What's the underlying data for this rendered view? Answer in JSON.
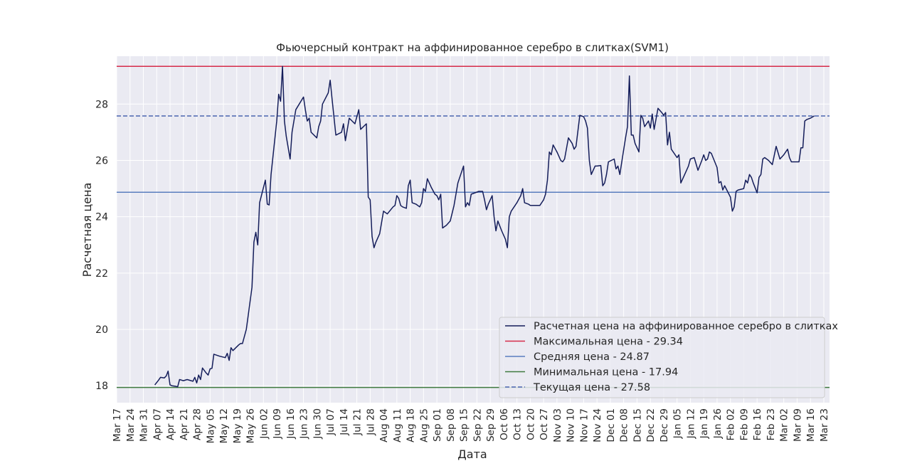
{
  "chart_data": {
    "type": "line",
    "title": "Фьючерсный контракт на аффинированное серебро в слитках(SVM1)",
    "xlabel": "Дата",
    "ylabel": "Расчетная цена",
    "ylim": [
      17.4,
      29.7
    ],
    "yticks": [
      18,
      20,
      22,
      24,
      26,
      28
    ],
    "xlim": [
      "2021-03-17",
      "2022-03-26"
    ],
    "xticks": [
      "Mar 17",
      "Mar 24",
      "Mar 31",
      "Apr 07",
      "Apr 14",
      "Apr 21",
      "Apr 28",
      "May 05",
      "May 12",
      "May 19",
      "May 26",
      "Jun 02",
      "Jun 09",
      "Jun 16",
      "Jun 23",
      "Jun 30",
      "Jul 07",
      "Jul 14",
      "Jul 21",
      "Jul 28",
      "Aug 04",
      "Aug 11",
      "Aug 18",
      "Aug 25",
      "Sep 01",
      "Sep 08",
      "Sep 15",
      "Sep 22",
      "Sep 29",
      "Oct 06",
      "Oct 13",
      "Oct 20",
      "Oct 27",
      "Nov 03",
      "Nov 10",
      "Nov 17",
      "Nov 24",
      "Dec 01",
      "Dec 08",
      "Dec 15",
      "Dec 22",
      "Dec 29",
      "Jan 05",
      "Jan 12",
      "Jan 19",
      "Jan 26",
      "Feb 02",
      "Feb 09",
      "Feb 16",
      "Feb 23",
      "Mar 02",
      "Mar 09",
      "Mar 16",
      "Mar 23"
    ],
    "grid": true,
    "legend_position": "lower-right",
    "series": [
      {
        "name": "Расчетная цена на аффинированное серебро в слитках",
        "color": "#141d5a",
        "style": "solid",
        "points": [
          [
            "2021-04-06",
            18.03
          ],
          [
            "2021-04-08",
            18.2
          ],
          [
            "2021-04-09",
            18.3
          ],
          [
            "2021-04-11",
            18.28
          ],
          [
            "2021-04-12",
            18.35
          ],
          [
            "2021-04-13",
            18.52
          ],
          [
            "2021-04-14",
            18.03
          ],
          [
            "2021-04-15",
            18.0
          ],
          [
            "2021-04-17",
            17.98
          ],
          [
            "2021-04-18",
            17.96
          ],
          [
            "2021-04-19",
            18.22
          ],
          [
            "2021-04-21",
            18.18
          ],
          [
            "2021-04-23",
            18.22
          ],
          [
            "2021-04-26",
            18.16
          ],
          [
            "2021-04-27",
            18.3
          ],
          [
            "2021-04-28",
            18.1
          ],
          [
            "2021-04-29",
            18.38
          ],
          [
            "2021-04-30",
            18.22
          ],
          [
            "2021-05-01",
            18.63
          ],
          [
            "2021-05-03",
            18.45
          ],
          [
            "2021-05-04",
            18.38
          ],
          [
            "2021-05-05",
            18.6
          ],
          [
            "2021-05-06",
            18.62
          ],
          [
            "2021-05-07",
            19.12
          ],
          [
            "2021-05-10",
            19.05
          ],
          [
            "2021-05-13",
            19.0
          ],
          [
            "2021-05-14",
            19.15
          ],
          [
            "2021-05-15",
            18.9
          ],
          [
            "2021-05-16",
            19.35
          ],
          [
            "2021-05-17",
            19.25
          ],
          [
            "2021-05-20",
            19.45
          ],
          [
            "2021-05-21",
            19.5
          ],
          [
            "2021-05-22",
            19.5
          ],
          [
            "2021-05-24",
            20.0
          ],
          [
            "2021-05-25",
            20.5
          ],
          [
            "2021-05-27",
            21.5
          ],
          [
            "2021-05-28",
            23.1
          ],
          [
            "2021-05-29",
            23.45
          ],
          [
            "2021-05-30",
            23.0
          ],
          [
            "2021-05-31",
            24.5
          ],
          [
            "2021-06-03",
            25.3
          ],
          [
            "2021-06-04",
            24.45
          ],
          [
            "2021-06-05",
            24.42
          ],
          [
            "2021-06-06",
            25.5
          ],
          [
            "2021-06-09",
            27.4
          ],
          [
            "2021-06-10",
            28.35
          ],
          [
            "2021-06-11",
            28.1
          ],
          [
            "2021-06-12",
            29.34
          ],
          [
            "2021-06-13",
            27.4
          ],
          [
            "2021-06-14",
            26.85
          ],
          [
            "2021-06-16",
            26.05
          ],
          [
            "2021-06-17",
            27.0
          ],
          [
            "2021-06-19",
            27.8
          ],
          [
            "2021-06-23",
            28.25
          ],
          [
            "2021-06-24",
            27.8
          ],
          [
            "2021-06-25",
            27.4
          ],
          [
            "2021-06-26",
            27.5
          ],
          [
            "2021-06-27",
            27.0
          ],
          [
            "2021-06-30",
            26.8
          ],
          [
            "2021-07-01",
            27.2
          ],
          [
            "2021-07-02",
            27.4
          ],
          [
            "2021-07-03",
            28.0
          ],
          [
            "2021-07-06",
            28.4
          ],
          [
            "2021-07-07",
            28.85
          ],
          [
            "2021-07-08",
            28.2
          ],
          [
            "2021-07-10",
            26.9
          ],
          [
            "2021-07-13",
            27.0
          ],
          [
            "2021-07-14",
            27.3
          ],
          [
            "2021-07-15",
            26.7
          ],
          [
            "2021-07-17",
            27.5
          ],
          [
            "2021-07-20",
            27.3
          ],
          [
            "2021-07-22",
            27.8
          ],
          [
            "2021-07-23",
            27.1
          ],
          [
            "2021-07-26",
            27.3
          ],
          [
            "2021-07-27",
            24.7
          ],
          [
            "2021-07-28",
            24.6
          ],
          [
            "2021-07-29",
            23.3
          ],
          [
            "2021-07-30",
            22.9
          ],
          [
            "2021-07-31",
            23.1
          ],
          [
            "2021-08-02",
            23.4
          ],
          [
            "2021-08-04",
            24.2
          ],
          [
            "2021-08-06",
            24.1
          ],
          [
            "2021-08-09",
            24.35
          ],
          [
            "2021-08-10",
            24.4
          ],
          [
            "2021-08-11",
            24.75
          ],
          [
            "2021-08-12",
            24.65
          ],
          [
            "2021-08-13",
            24.4
          ],
          [
            "2021-08-14",
            24.35
          ],
          [
            "2021-08-16",
            24.3
          ],
          [
            "2021-08-17",
            25.1
          ],
          [
            "2021-08-18",
            25.3
          ],
          [
            "2021-08-19",
            24.5
          ],
          [
            "2021-08-21",
            24.45
          ],
          [
            "2021-08-23",
            24.35
          ],
          [
            "2021-08-24",
            24.5
          ],
          [
            "2021-08-25",
            25.0
          ],
          [
            "2021-08-26",
            24.9
          ],
          [
            "2021-08-27",
            25.35
          ],
          [
            "2021-08-29",
            25.05
          ],
          [
            "2021-08-31",
            24.8
          ],
          [
            "2021-09-01",
            24.75
          ],
          [
            "2021-09-02",
            24.6
          ],
          [
            "2021-09-03",
            24.8
          ],
          [
            "2021-09-04",
            23.6
          ],
          [
            "2021-09-06",
            23.7
          ],
          [
            "2021-09-08",
            23.85
          ],
          [
            "2021-09-10",
            24.4
          ],
          [
            "2021-09-12",
            25.2
          ],
          [
            "2021-09-15",
            25.8
          ],
          [
            "2021-09-16",
            24.35
          ],
          [
            "2021-09-17",
            24.5
          ],
          [
            "2021-09-18",
            24.4
          ],
          [
            "2021-09-19",
            24.8
          ],
          [
            "2021-09-21",
            24.85
          ],
          [
            "2021-09-23",
            24.9
          ],
          [
            "2021-09-25",
            24.9
          ],
          [
            "2021-09-26",
            24.6
          ],
          [
            "2021-09-27",
            24.25
          ],
          [
            "2021-09-28",
            24.45
          ],
          [
            "2021-09-30",
            24.75
          ],
          [
            "2021-10-01",
            24.0
          ],
          [
            "2021-10-02",
            23.5
          ],
          [
            "2021-10-03",
            23.85
          ],
          [
            "2021-10-05",
            23.5
          ],
          [
            "2021-10-07",
            23.2
          ],
          [
            "2021-10-08",
            22.9
          ],
          [
            "2021-10-09",
            24.0
          ],
          [
            "2021-10-10",
            24.2
          ],
          [
            "2021-10-13",
            24.5
          ],
          [
            "2021-10-15",
            24.75
          ],
          [
            "2021-10-16",
            25.0
          ],
          [
            "2021-10-17",
            24.5
          ],
          [
            "2021-10-19",
            24.45
          ],
          [
            "2021-10-20",
            24.4
          ],
          [
            "2021-10-21",
            24.4
          ],
          [
            "2021-10-25",
            24.4
          ],
          [
            "2021-10-27",
            24.6
          ],
          [
            "2021-10-28",
            24.8
          ],
          [
            "2021-10-29",
            25.3
          ],
          [
            "2021-10-30",
            26.3
          ],
          [
            "2021-10-31",
            26.2
          ],
          [
            "2021-11-01",
            26.55
          ],
          [
            "2021-11-03",
            26.3
          ],
          [
            "2021-11-05",
            26.0
          ],
          [
            "2021-11-06",
            25.95
          ],
          [
            "2021-11-07",
            26.05
          ],
          [
            "2021-11-09",
            26.8
          ],
          [
            "2021-11-11",
            26.6
          ],
          [
            "2021-11-12",
            26.4
          ],
          [
            "2021-11-13",
            26.5
          ],
          [
            "2021-11-15",
            27.6
          ],
          [
            "2021-11-17",
            27.55
          ],
          [
            "2021-11-18",
            27.4
          ],
          [
            "2021-11-19",
            27.15
          ],
          [
            "2021-11-20",
            26.0
          ],
          [
            "2021-11-21",
            25.5
          ],
          [
            "2021-11-23",
            25.8
          ],
          [
            "2021-11-24",
            25.8
          ],
          [
            "2021-11-26",
            25.82
          ],
          [
            "2021-11-27",
            25.1
          ],
          [
            "2021-11-28",
            25.2
          ],
          [
            "2021-11-29",
            25.5
          ],
          [
            "2021-11-30",
            25.95
          ],
          [
            "2021-12-03",
            26.05
          ],
          [
            "2021-12-04",
            25.7
          ],
          [
            "2021-12-05",
            25.8
          ],
          [
            "2021-12-06",
            25.5
          ],
          [
            "2021-12-07",
            25.95
          ],
          [
            "2021-12-09",
            26.8
          ],
          [
            "2021-12-10",
            27.2
          ],
          [
            "2021-12-11",
            29.0
          ],
          [
            "2021-12-12",
            26.9
          ],
          [
            "2021-12-13",
            26.9
          ],
          [
            "2021-12-14",
            26.6
          ],
          [
            "2021-12-16",
            26.3
          ],
          [
            "2021-12-17",
            27.6
          ],
          [
            "2021-12-18",
            27.5
          ],
          [
            "2021-12-19",
            27.2
          ],
          [
            "2021-12-21",
            27.4
          ],
          [
            "2021-12-22",
            27.15
          ],
          [
            "2021-12-23",
            27.65
          ],
          [
            "2021-12-24",
            27.1
          ],
          [
            "2021-12-26",
            27.85
          ],
          [
            "2021-12-28",
            27.7
          ],
          [
            "2021-12-29",
            27.6
          ],
          [
            "2021-12-30",
            27.7
          ],
          [
            "2021-12-31",
            26.55
          ],
          [
            "2022-01-01",
            27.0
          ],
          [
            "2022-01-02",
            26.4
          ],
          [
            "2022-01-05",
            26.1
          ],
          [
            "2022-01-06",
            26.2
          ],
          [
            "2022-01-07",
            25.2
          ],
          [
            "2022-01-09",
            25.5
          ],
          [
            "2022-01-11",
            25.8
          ],
          [
            "2022-01-12",
            26.05
          ],
          [
            "2022-01-14",
            26.1
          ],
          [
            "2022-01-16",
            25.65
          ],
          [
            "2022-01-18",
            26.0
          ],
          [
            "2022-01-19",
            26.2
          ],
          [
            "2022-01-20",
            26.0
          ],
          [
            "2022-01-21",
            26.05
          ],
          [
            "2022-01-22",
            26.3
          ],
          [
            "2022-01-23",
            26.25
          ],
          [
            "2022-01-26",
            25.75
          ],
          [
            "2022-01-27",
            25.2
          ],
          [
            "2022-01-28",
            25.25
          ],
          [
            "2022-01-29",
            24.95
          ],
          [
            "2022-01-30",
            25.1
          ],
          [
            "2022-02-02",
            24.7
          ],
          [
            "2022-02-03",
            24.2
          ],
          [
            "2022-02-04",
            24.35
          ],
          [
            "2022-02-05",
            24.9
          ],
          [
            "2022-02-06",
            24.95
          ],
          [
            "2022-02-09",
            25.0
          ],
          [
            "2022-02-10",
            25.3
          ],
          [
            "2022-02-11",
            25.2
          ],
          [
            "2022-02-12",
            25.5
          ],
          [
            "2022-02-13",
            25.4
          ],
          [
            "2022-02-14",
            25.2
          ],
          [
            "2022-02-16",
            24.85
          ],
          [
            "2022-02-17",
            25.4
          ],
          [
            "2022-02-18",
            25.5
          ],
          [
            "2022-02-19",
            26.05
          ],
          [
            "2022-02-20",
            26.1
          ],
          [
            "2022-02-22",
            26.0
          ],
          [
            "2022-02-24",
            25.85
          ],
          [
            "2022-02-26",
            26.5
          ],
          [
            "2022-02-28",
            26.05
          ],
          [
            "2022-03-02",
            26.2
          ],
          [
            "2022-03-04",
            26.4
          ],
          [
            "2022-03-05",
            26.1
          ],
          [
            "2022-03-06",
            25.95
          ],
          [
            "2022-03-10",
            25.95
          ],
          [
            "2022-03-11",
            26.45
          ],
          [
            "2022-03-12",
            26.45
          ],
          [
            "2022-03-13",
            27.4
          ],
          [
            "2022-03-14",
            27.45
          ],
          [
            "2022-03-16",
            27.5
          ],
          [
            "2022-03-18",
            27.58
          ]
        ]
      },
      {
        "name": "Максимальная цена - 29.34",
        "color": "#d62c4a",
        "style": "solid",
        "value": 29.34
      },
      {
        "name": "Средняя цена - 24.87",
        "color": "#5a7dbf",
        "style": "solid",
        "value": 24.87
      },
      {
        "name": "Минимальная цена - 17.94",
        "color": "#3f7a3f",
        "style": "solid",
        "value": 17.94
      },
      {
        "name": "Текущая цена - 27.58",
        "color": "#4a64b0",
        "style": "dashed",
        "value": 27.58
      }
    ]
  }
}
